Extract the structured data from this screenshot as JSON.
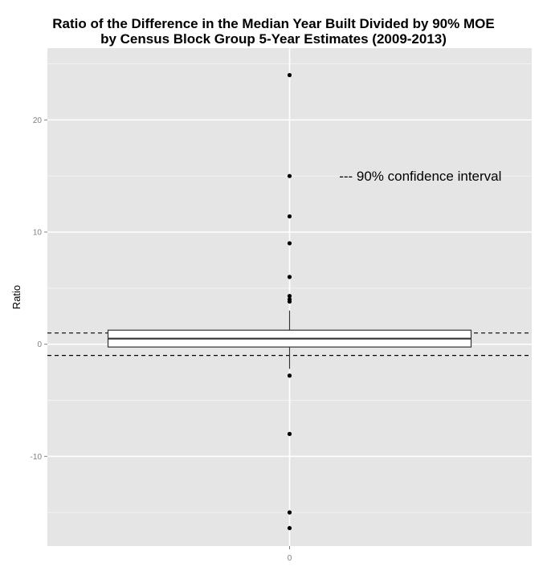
{
  "chart_data": {
    "type": "box",
    "title_lines": [
      "Ratio of the Difference in the Median Year Built Divided by 90% MOE",
      "by Census Block Group 5-Year Estimates (2009-2013)"
    ],
    "xlabel": "",
    "ylabel": "Ratio",
    "x_categories": [
      "0"
    ],
    "ylim": [
      -18.0,
      26.4
    ],
    "y_ticks": [
      -10,
      0,
      10,
      20
    ],
    "y_tick_labels": [
      "-10",
      "0",
      "10",
      "20"
    ],
    "box": {
      "lower_whisker": -2.2,
      "q1": -0.25,
      "median": 0.5,
      "q3": 1.25,
      "upper_whisker": 3.0
    },
    "outliers": [
      24.0,
      15.0,
      11.4,
      9.0,
      6.0,
      4.3,
      4.0,
      3.8,
      -2.8,
      -8.0,
      -15.0,
      -16.4
    ],
    "reference_lines": [
      1.0,
      -1.0
    ],
    "annotation": "--- 90% confidence interval",
    "annotation_position": {
      "x": 0.27,
      "y": 15.0
    },
    "grid": true,
    "background_color": "#e5e5e5",
    "grid_major_color": "#ffffff",
    "grid_minor_color": "#f2f2f2"
  }
}
